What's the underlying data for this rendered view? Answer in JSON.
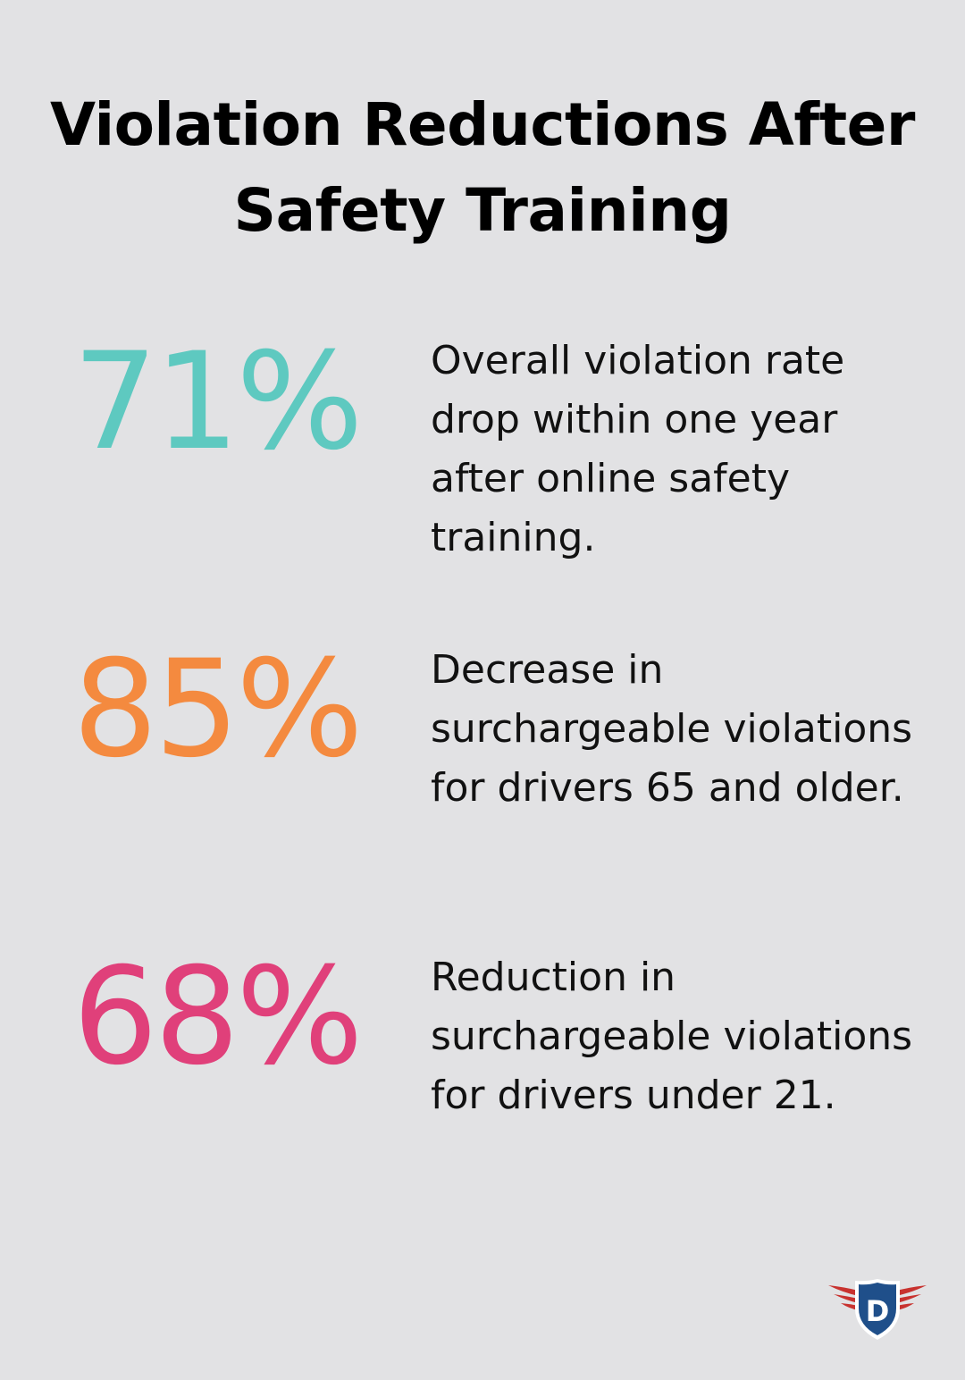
{
  "title": "Violation Reductions After Safety Training",
  "stats": [
    {
      "value": "71%",
      "description": "Overall violation rate drop within one year after online safety training.",
      "color": "#5ec9c0"
    },
    {
      "value": "85%",
      "description": "Decrease in surchargeable violations for drivers 65 and older.",
      "color": "#f48a3f"
    },
    {
      "value": "68%",
      "description": "Reduction in surchargeable violations for drivers under 21.",
      "color": "#e0407a"
    }
  ],
  "logo": {
    "icon": "winged-shield-d-icon",
    "letter": "D",
    "colors": {
      "shield": "#1f4f8a",
      "wings": "#c8322f"
    }
  }
}
